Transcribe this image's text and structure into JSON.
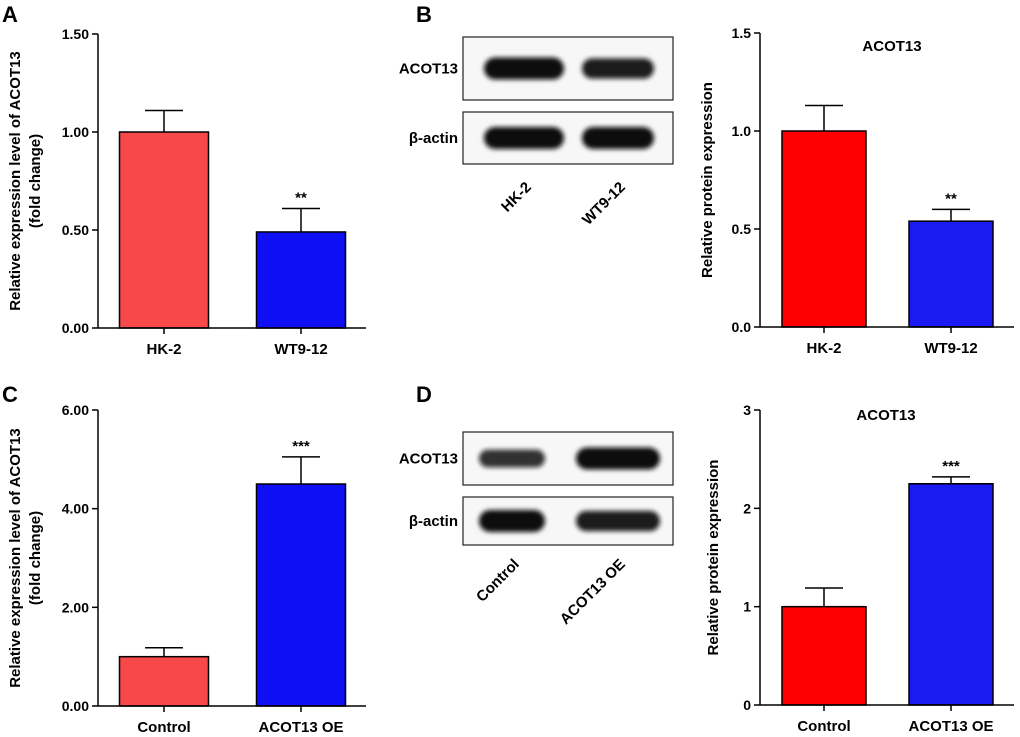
{
  "panels": [
    "A",
    "B",
    "C",
    "D"
  ],
  "chart_data": [
    {
      "panel": "A",
      "type": "bar",
      "title": "",
      "categories": [
        "HK-2",
        "WT9-12"
      ],
      "values": [
        1.0,
        0.49
      ],
      "errors": [
        0.11,
        0.12
      ],
      "significance": [
        "",
        "**"
      ],
      "colors": [
        "#F74949",
        "#0F0FF5"
      ],
      "ylabel": [
        "Relative expression level of ACOT13",
        "(fold change)"
      ],
      "ylim": [
        0,
        1.5
      ],
      "yticks": [
        0,
        0.5,
        1.0,
        1.5
      ],
      "yticklabels": [
        "0.00",
        "0.50",
        "1.00",
        "1.50"
      ]
    },
    {
      "panel": "B",
      "type": "bar",
      "title": "ACOT13",
      "categories": [
        "HK-2",
        "WT9-12"
      ],
      "values": [
        1.0,
        0.54
      ],
      "errors": [
        0.13,
        0.06
      ],
      "significance": [
        "",
        "**"
      ],
      "colors": [
        "#FF0000",
        "#1A1AF2"
      ],
      "ylabel": [
        "Relative protein expression"
      ],
      "ylim": [
        0,
        1.5
      ],
      "yticks": [
        0,
        0.5,
        1.0,
        1.5
      ],
      "yticklabels": [
        "0.0",
        "0.5",
        "1.0",
        "1.5"
      ]
    },
    {
      "panel": "C",
      "type": "bar",
      "title": "",
      "categories": [
        "Control",
        "ACOT13 OE"
      ],
      "values": [
        1.0,
        4.5
      ],
      "errors": [
        0.18,
        0.55
      ],
      "significance": [
        "",
        "***"
      ],
      "colors": [
        "#F74949",
        "#0F0FF5"
      ],
      "ylabel": [
        "Relative expression level of ACOT13",
        "(fold change)"
      ],
      "ylim": [
        0,
        6
      ],
      "yticks": [
        0,
        2,
        4,
        6
      ],
      "yticklabels": [
        "0.00",
        "2.00",
        "4.00",
        "6.00"
      ]
    },
    {
      "panel": "D",
      "type": "bar",
      "title": "ACOT13",
      "categories": [
        "Control",
        "ACOT13 OE"
      ],
      "values": [
        1.0,
        2.25
      ],
      "errors": [
        0.19,
        0.07
      ],
      "significance": [
        "",
        "***"
      ],
      "colors": [
        "#FF0000",
        "#1A1AF2"
      ],
      "ylabel": [
        "Relative protein expression"
      ],
      "ylim": [
        0,
        3
      ],
      "yticks": [
        0,
        1,
        2,
        3
      ],
      "yticklabels": [
        "0",
        "1",
        "2",
        "3"
      ]
    }
  ],
  "blots": [
    {
      "panel": "B",
      "rows": [
        "ACOT13",
        "β-actin"
      ],
      "lanes": [
        "HK-2",
        "WT9-12"
      ],
      "intensity": [
        [
          1.0,
          0.85
        ],
        [
          1.0,
          1.0
        ]
      ]
    },
    {
      "panel": "D",
      "rows": [
        "ACOT13",
        "β-actin"
      ],
      "lanes": [
        "Control",
        "ACOT13 OE"
      ],
      "intensity": [
        [
          0.65,
          1.0
        ],
        [
          1.0,
          0.85
        ]
      ]
    }
  ]
}
